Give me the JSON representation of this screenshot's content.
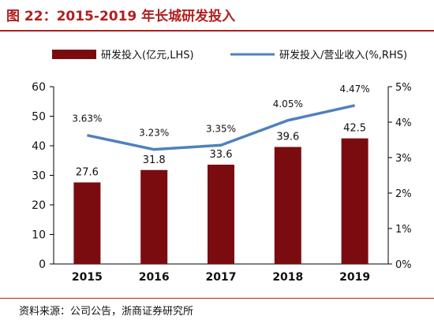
{
  "title": "图 22：2015-2019 年长城研发投入",
  "source": "资料来源：公司公告，浙商证券研究所",
  "colors": {
    "bar": "#7a0c10",
    "line": "#4f81bd",
    "title": "#b02020"
  },
  "chart_data": {
    "type": "bar",
    "categories": [
      "2015",
      "2016",
      "2017",
      "2018",
      "2019"
    ],
    "series": [
      {
        "name": "研发投入(亿元,LHS)",
        "type": "bar",
        "axis": "left",
        "values": [
          27.6,
          31.8,
          33.6,
          39.6,
          42.5
        ],
        "labels": [
          "27.6",
          "31.8",
          "33.6",
          "39.6",
          "42.5"
        ]
      },
      {
        "name": "研发投入/营业收入(%,RHS)",
        "type": "line",
        "axis": "right",
        "values": [
          3.63,
          3.23,
          3.35,
          4.05,
          4.47
        ],
        "labels": [
          "3.63%",
          "3.23%",
          "3.35%",
          "4.05%",
          "4.47%"
        ]
      }
    ],
    "left_axis": {
      "min": 0,
      "max": 60,
      "ticks": [
        "0",
        "10",
        "20",
        "30",
        "40",
        "50",
        "60"
      ]
    },
    "right_axis": {
      "min": 0,
      "max": 5,
      "ticks": [
        "0%",
        "1%",
        "2%",
        "3%",
        "4%",
        "5%"
      ]
    },
    "legend_position": "top",
    "grid": false
  }
}
